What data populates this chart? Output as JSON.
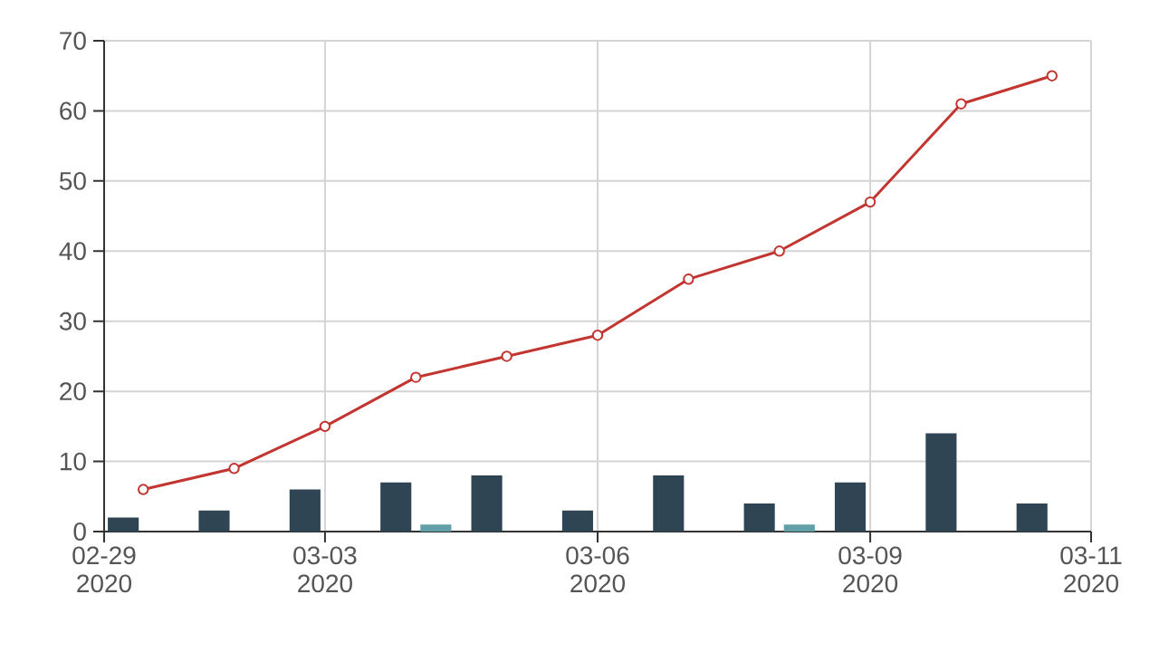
{
  "chart_data": {
    "type": "bar",
    "x": [
      "2020-03-01",
      "2020-03-02",
      "2020-03-03",
      "2020-03-04",
      "2020-03-05",
      "2020-03-06",
      "2020-03-07",
      "2020-03-08",
      "2020-03-09",
      "2020-03-10",
      "2020-03-11"
    ],
    "series": [
      {
        "color": "#2f4554",
        "values": [
          2,
          3,
          6,
          7,
          8,
          3,
          8,
          4,
          7,
          14,
          4
        ]
      },
      {
        "color": "#61a0a8",
        "x": [
          "2020-03-04",
          "2020-03-08"
        ],
        "values": [
          1,
          1
        ]
      },
      {
        "type": "line",
        "color": "#c23531",
        "marker": "circle",
        "values": [
          6,
          9,
          15,
          22,
          25,
          28,
          36,
          40,
          47,
          61,
          65
        ]
      }
    ],
    "xlim": [
      "2020-02-29T13:40",
      "2020-03-11T10:20"
    ],
    "xticks": [
      {
        "value": "2020-02-29T13:40",
        "label": "02-29 2020"
      },
      {
        "value": "2020-03-03",
        "label": "03-03 2020"
      },
      {
        "value": "2020-03-06",
        "label": "03-06 2020"
      },
      {
        "value": "2020-03-09",
        "label": "03-09 2020"
      },
      {
        "value": "2020-03-11T10:20",
        "label": "03-11 2020"
      }
    ],
    "ylim": [
      0,
      70
    ],
    "yticks": [
      0,
      10,
      20,
      30,
      40,
      50,
      60,
      70
    ],
    "grid": true
  }
}
